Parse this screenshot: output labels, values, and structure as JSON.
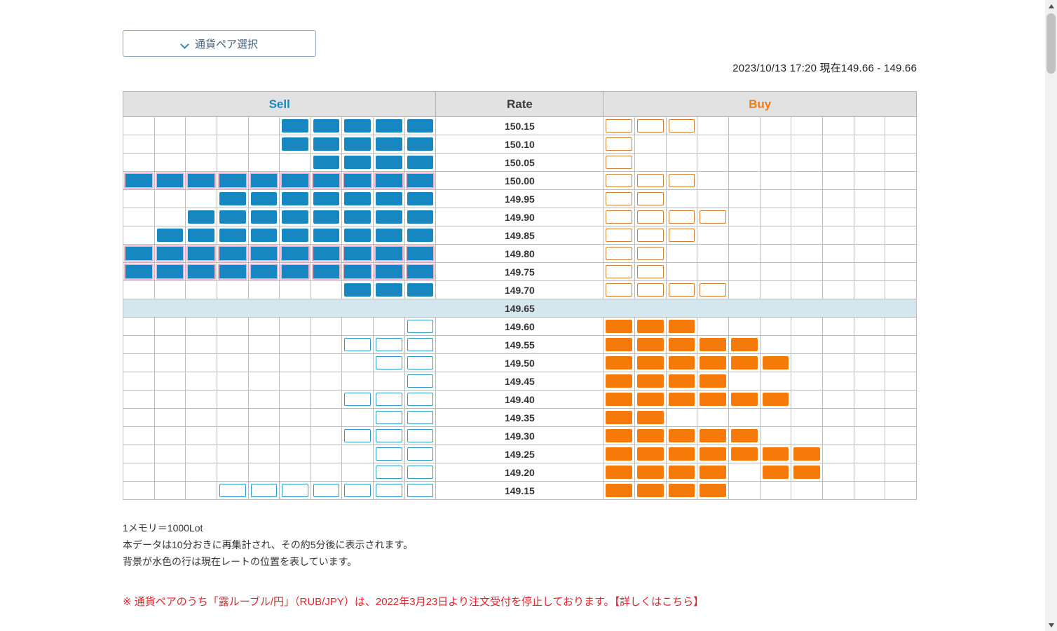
{
  "app": {
    "pair_selector_label": "通貨ペア選択",
    "timestamp": "2023/10/13 17:20 現在149.66 - 149.66"
  },
  "board": {
    "headers": {
      "sell": "Sell",
      "rate": "Rate",
      "buy": "Buy"
    },
    "columns_per_side": 10,
    "current_rate_row": "149.65",
    "rows": [
      {
        "rate": "150.15",
        "sell_filled": 5,
        "sell_hollow": 0,
        "sell_special": false,
        "buy_filled": [],
        "buy_hollow": 3,
        "current": false
      },
      {
        "rate": "150.10",
        "sell_filled": 5,
        "sell_hollow": 0,
        "sell_special": false,
        "buy_filled": [],
        "buy_hollow": 1,
        "current": false
      },
      {
        "rate": "150.05",
        "sell_filled": 4,
        "sell_hollow": 0,
        "sell_special": false,
        "buy_filled": [],
        "buy_hollow": 1,
        "current": false
      },
      {
        "rate": "150.00",
        "sell_filled": 10,
        "sell_hollow": 0,
        "sell_special": true,
        "buy_filled": [],
        "buy_hollow": 3,
        "current": false
      },
      {
        "rate": "149.95",
        "sell_filled": 7,
        "sell_hollow": 0,
        "sell_special": false,
        "buy_filled": [],
        "buy_hollow": 2,
        "current": false
      },
      {
        "rate": "149.90",
        "sell_filled": 8,
        "sell_hollow": 0,
        "sell_special": false,
        "buy_filled": [],
        "buy_hollow": 4,
        "current": false
      },
      {
        "rate": "149.85",
        "sell_filled": 9,
        "sell_hollow": 0,
        "sell_special": false,
        "buy_filled": [],
        "buy_hollow": 3,
        "current": false
      },
      {
        "rate": "149.80",
        "sell_filled": 10,
        "sell_hollow": 0,
        "sell_special": true,
        "buy_filled": [],
        "buy_hollow": 2,
        "current": false
      },
      {
        "rate": "149.75",
        "sell_filled": 10,
        "sell_hollow": 0,
        "sell_special": true,
        "buy_filled": [],
        "buy_hollow": 2,
        "current": false
      },
      {
        "rate": "149.70",
        "sell_filled": 3,
        "sell_hollow": 0,
        "sell_special": false,
        "buy_filled": [],
        "buy_hollow": 4,
        "current": false
      },
      {
        "rate": "149.65",
        "sell_filled": 0,
        "sell_hollow": 0,
        "sell_special": false,
        "buy_filled": [],
        "buy_hollow": 0,
        "current": true
      },
      {
        "rate": "149.60",
        "sell_filled": 0,
        "sell_hollow": 1,
        "sell_special": false,
        "buy_filled": [
          1,
          2,
          3
        ],
        "buy_hollow": 0,
        "current": false
      },
      {
        "rate": "149.55",
        "sell_filled": 0,
        "sell_hollow": 3,
        "sell_special": false,
        "buy_filled": [
          1,
          2,
          3,
          4,
          5
        ],
        "buy_hollow": 0,
        "current": false
      },
      {
        "rate": "149.50",
        "sell_filled": 0,
        "sell_hollow": 2,
        "sell_special": false,
        "buy_filled": [
          1,
          2,
          3,
          4,
          5,
          6
        ],
        "buy_hollow": 0,
        "current": false
      },
      {
        "rate": "149.45",
        "sell_filled": 0,
        "sell_hollow": 1,
        "sell_special": false,
        "buy_filled": [
          1,
          2,
          3,
          4
        ],
        "buy_hollow": 0,
        "current": false
      },
      {
        "rate": "149.40",
        "sell_filled": 0,
        "sell_hollow": 3,
        "sell_special": false,
        "buy_filled": [
          1,
          2,
          3,
          4,
          5,
          6
        ],
        "buy_hollow": 0,
        "current": false
      },
      {
        "rate": "149.35",
        "sell_filled": 0,
        "sell_hollow": 2,
        "sell_special": false,
        "buy_filled": [
          1,
          2
        ],
        "buy_hollow": 0,
        "current": false
      },
      {
        "rate": "149.30",
        "sell_filled": 0,
        "sell_hollow": 3,
        "sell_special": false,
        "buy_filled": [
          1,
          2,
          3,
          4,
          5
        ],
        "buy_hollow": 0,
        "current": false
      },
      {
        "rate": "149.25",
        "sell_filled": 0,
        "sell_hollow": 2,
        "sell_special": false,
        "buy_filled": [
          1,
          2,
          3,
          4,
          5,
          6,
          7
        ],
        "buy_hollow": 0,
        "current": false
      },
      {
        "rate": "149.20",
        "sell_filled": 0,
        "sell_hollow": 2,
        "sell_special": false,
        "buy_filled": [
          1,
          2,
          3,
          4,
          6,
          7
        ],
        "buy_hollow": 0,
        "current": false
      },
      {
        "rate": "149.15",
        "sell_filled": 0,
        "sell_hollow": 7,
        "sell_special": false,
        "buy_filled": [
          1,
          2,
          3,
          4
        ],
        "buy_hollow": 0,
        "current": false
      }
    ]
  },
  "notes": [
    "1メモリ＝1000Lot",
    "本データは10分おきに再集計され、その約5分後に表示されます。",
    "背景が水色の行は現在レートの位置を表しています。"
  ],
  "notice": {
    "text": "※ 通貨ペアのうち「露ルーブル/円」（RUB/JPY）は、2022年3月23日より注文受付を停止しております。",
    "link_label": "【詳しくはこちら】"
  },
  "colors": {
    "sell": "#1787c2",
    "buy": "#f57a0a",
    "sell_outline": "#2f9ac6",
    "buy_outline": "#c9803a",
    "special_border": "#f3afc6",
    "current_bg": "#d4e6ee",
    "notice_red": "#e0242c"
  }
}
